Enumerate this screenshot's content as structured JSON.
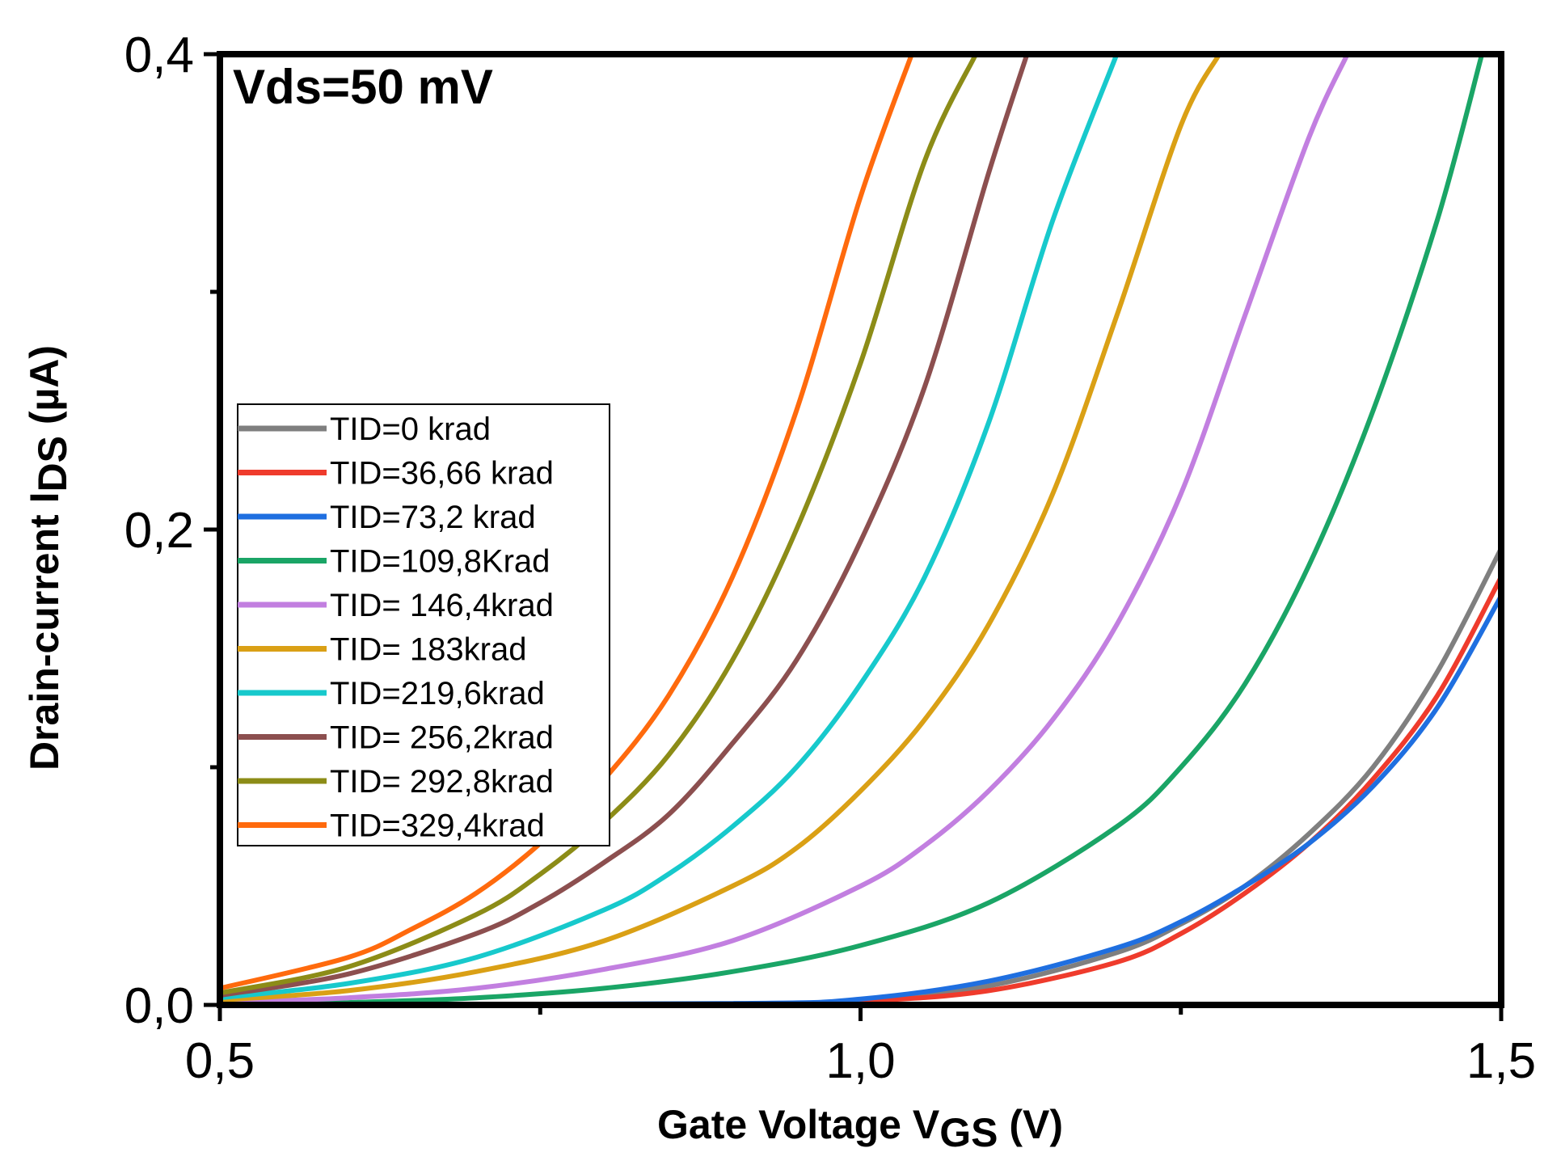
{
  "chart_data": {
    "type": "line",
    "title": "",
    "annotation": "Vds=50 mV",
    "xlabel": {
      "main": "Gate Voltage V",
      "sub": "GS",
      "tail": " (V)"
    },
    "ylabel": {
      "main": "Drain-current I",
      "sub": "DS",
      "tail": " (µA)"
    },
    "xlim": [
      0.5,
      1.5
    ],
    "ylim": [
      0,
      0.4
    ],
    "xticks": [
      {
        "value": 0.5,
        "label": "0,5"
      },
      {
        "value": 1.0,
        "label": "1,0"
      },
      {
        "value": 1.5,
        "label": "1,5"
      }
    ],
    "xminor": [
      0.75,
      1.25
    ],
    "yticks": [
      {
        "value": 0.0,
        "label": "0,0"
      },
      {
        "value": 0.2,
        "label": "0,2"
      },
      {
        "value": 0.4,
        "label": "0,4"
      }
    ],
    "yminor": [
      0.1,
      0.3
    ],
    "legend_position": "middle-left",
    "series": [
      {
        "name": "TID=0 krad",
        "color": "#7f7f7f",
        "x": [
          0.5,
          0.9,
          1.0,
          1.1,
          1.2,
          1.25,
          1.3,
          1.35,
          1.4,
          1.45,
          1.5
        ],
        "y": [
          0.0,
          0.0005,
          0.002,
          0.008,
          0.022,
          0.034,
          0.05,
          0.072,
          0.1,
          0.14,
          0.192
        ]
      },
      {
        "name": "TID=36,66 krad",
        "color": "#ef3b2c",
        "x": [
          0.5,
          0.9,
          1.0,
          1.1,
          1.2,
          1.25,
          1.3,
          1.35,
          1.4,
          1.45,
          1.5
        ],
        "y": [
          0.0,
          0.0003,
          0.0015,
          0.006,
          0.018,
          0.03,
          0.047,
          0.068,
          0.095,
          0.13,
          0.18
        ]
      },
      {
        "name": "TID=73,2 krad",
        "color": "#1f6fe0",
        "x": [
          0.5,
          0.9,
          1.0,
          1.1,
          1.2,
          1.25,
          1.3,
          1.35,
          1.4,
          1.45,
          1.5
        ],
        "y": [
          0.0,
          0.0006,
          0.0025,
          0.01,
          0.024,
          0.035,
          0.05,
          0.068,
          0.092,
          0.125,
          0.172
        ]
      },
      {
        "name": "TID=109,8Krad",
        "color": "#1aa566",
        "x": [
          0.5,
          0.6,
          0.7,
          0.8,
          0.9,
          1.0,
          1.1,
          1.2,
          1.25,
          1.3,
          1.35,
          1.4,
          1.45,
          1.485
        ],
        "y": [
          0.0,
          0.001,
          0.003,
          0.007,
          0.014,
          0.025,
          0.043,
          0.075,
          0.1,
          0.135,
          0.185,
          0.25,
          0.33,
          0.4
        ]
      },
      {
        "name": "TID= 146,4krad",
        "color": "#c27fe0",
        "x": [
          0.5,
          0.6,
          0.7,
          0.8,
          0.9,
          1.0,
          1.05,
          1.1,
          1.15,
          1.2,
          1.25,
          1.3,
          1.35,
          1.38
        ],
        "y": [
          0.001,
          0.003,
          0.007,
          0.015,
          0.027,
          0.05,
          0.067,
          0.09,
          0.12,
          0.16,
          0.215,
          0.29,
          0.365,
          0.4
        ]
      },
      {
        "name": "TID= 183krad",
        "color": "#daa015",
        "x": [
          0.5,
          0.6,
          0.7,
          0.8,
          0.9,
          0.95,
          1.0,
          1.05,
          1.1,
          1.15,
          1.2,
          1.25,
          1.28
        ],
        "y": [
          0.002,
          0.006,
          0.014,
          0.027,
          0.05,
          0.066,
          0.09,
          0.12,
          0.16,
          0.215,
          0.29,
          0.37,
          0.4
        ]
      },
      {
        "name": "TID=219,6krad",
        "color": "#17c9cc",
        "x": [
          0.5,
          0.6,
          0.7,
          0.8,
          0.85,
          0.9,
          0.95,
          1.0,
          1.05,
          1.1,
          1.15,
          1.2
        ],
        "y": [
          0.003,
          0.009,
          0.02,
          0.04,
          0.055,
          0.075,
          0.1,
          0.135,
          0.18,
          0.245,
          0.33,
          0.4
        ]
      },
      {
        "name": "TID= 256,2krad",
        "color": "#8c4f4f",
        "x": [
          0.5,
          0.6,
          0.7,
          0.75,
          0.8,
          0.85,
          0.9,
          0.95,
          1.0,
          1.05,
          1.1,
          1.13
        ],
        "y": [
          0.004,
          0.013,
          0.03,
          0.043,
          0.06,
          0.08,
          0.11,
          0.145,
          0.195,
          0.26,
          0.35,
          0.4
        ]
      },
      {
        "name": "TID= 292,8krad",
        "color": "#8c8c17",
        "x": [
          0.5,
          0.6,
          0.7,
          0.75,
          0.8,
          0.85,
          0.9,
          0.95,
          1.0,
          1.05,
          1.09
        ],
        "y": [
          0.005,
          0.016,
          0.038,
          0.055,
          0.077,
          0.105,
          0.145,
          0.2,
          0.27,
          0.355,
          0.4
        ]
      },
      {
        "name": "TID=329,4krad",
        "color": "#ff6a0d",
        "x": [
          0.5,
          0.6,
          0.65,
          0.7,
          0.75,
          0.8,
          0.85,
          0.9,
          0.95,
          1.0,
          1.04
        ],
        "y": [
          0.007,
          0.02,
          0.032,
          0.047,
          0.068,
          0.095,
          0.13,
          0.18,
          0.25,
          0.34,
          0.4
        ]
      }
    ]
  }
}
